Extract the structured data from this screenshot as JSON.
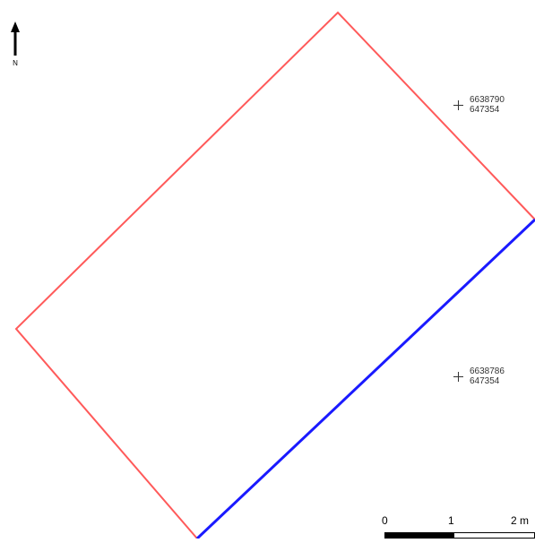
{
  "map": {
    "north_arrow": {
      "label": "N"
    },
    "grid_points": [
      {
        "northing": "6638790",
        "easting": "647354"
      },
      {
        "northing": "6638786",
        "easting": "647354"
      }
    ],
    "scalebar": {
      "labels": [
        "0",
        "1",
        "2 m"
      ]
    },
    "colors": {
      "parcel_boundary": "#ff5a5a",
      "highlighted_edge": "#1a1aff",
      "scale_dark": "#000000",
      "scale_light": "#ffffff",
      "background": "#ffffff"
    }
  }
}
